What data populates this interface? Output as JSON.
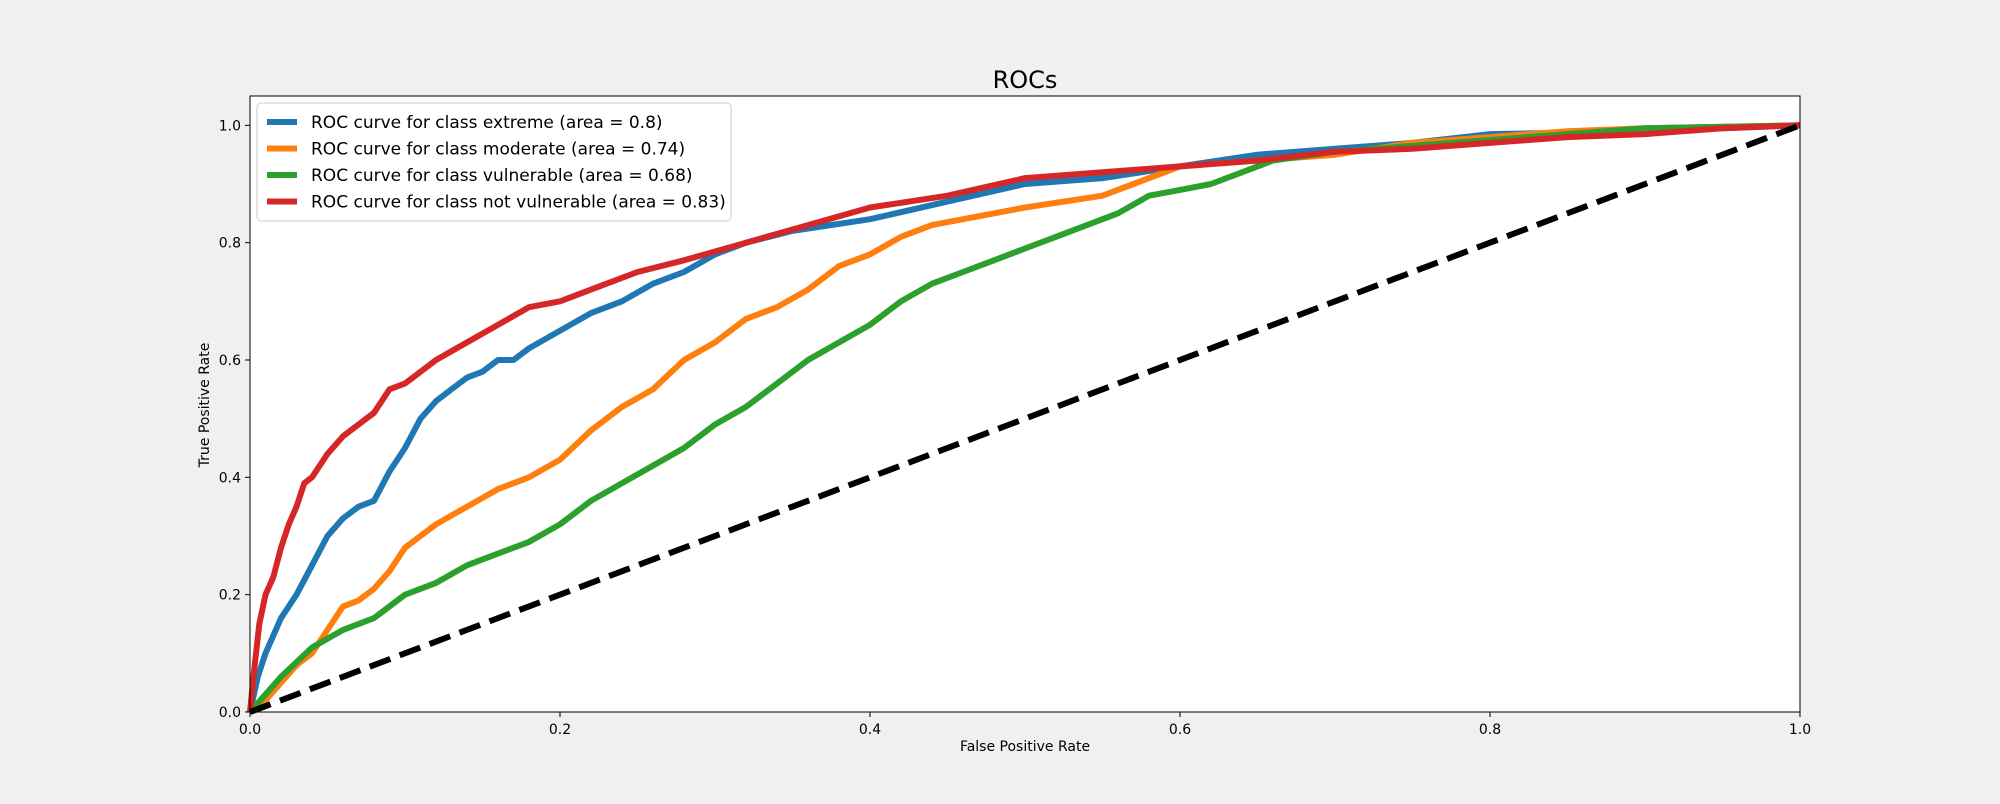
{
  "chart_data": {
    "type": "line",
    "title": "ROCs",
    "xlabel": "False Positive Rate",
    "ylabel": "True Positive Rate",
    "xlim": [
      0.0,
      1.0
    ],
    "ylim": [
      0.0,
      1.05
    ],
    "xticks": [
      "0.0",
      "0.2",
      "0.4",
      "0.6",
      "0.8",
      "1.0"
    ],
    "yticks": [
      "0.0",
      "0.2",
      "0.4",
      "0.6",
      "0.8",
      "1.0"
    ],
    "grid": false,
    "legend_position": "top-left",
    "series": [
      {
        "name": "ROC curve for class extreme (area = 0.8)",
        "color": "#1f77b4",
        "x": [
          0.0,
          0.005,
          0.01,
          0.015,
          0.02,
          0.03,
          0.04,
          0.05,
          0.06,
          0.07,
          0.08,
          0.09,
          0.1,
          0.11,
          0.12,
          0.13,
          0.14,
          0.15,
          0.16,
          0.17,
          0.18,
          0.2,
          0.22,
          0.24,
          0.26,
          0.28,
          0.3,
          0.32,
          0.35,
          0.4,
          0.45,
          0.5,
          0.55,
          0.6,
          0.65,
          0.7,
          0.75,
          0.8,
          0.9,
          1.0
        ],
        "y": [
          0.0,
          0.06,
          0.1,
          0.13,
          0.16,
          0.2,
          0.25,
          0.3,
          0.33,
          0.35,
          0.36,
          0.41,
          0.45,
          0.5,
          0.53,
          0.55,
          0.57,
          0.58,
          0.6,
          0.6,
          0.62,
          0.65,
          0.68,
          0.7,
          0.73,
          0.75,
          0.78,
          0.8,
          0.82,
          0.84,
          0.87,
          0.9,
          0.91,
          0.93,
          0.95,
          0.96,
          0.97,
          0.985,
          0.99,
          1.0
        ]
      },
      {
        "name": "ROC curve for class moderate (area = 0.74)",
        "color": "#ff7f0e",
        "x": [
          0.0,
          0.01,
          0.02,
          0.03,
          0.04,
          0.05,
          0.06,
          0.07,
          0.08,
          0.09,
          0.1,
          0.11,
          0.12,
          0.14,
          0.16,
          0.18,
          0.2,
          0.22,
          0.24,
          0.26,
          0.28,
          0.3,
          0.32,
          0.34,
          0.36,
          0.38,
          0.4,
          0.42,
          0.44,
          0.46,
          0.5,
          0.55,
          0.6,
          0.65,
          0.7,
          0.75,
          0.8,
          0.85,
          0.9,
          1.0
        ],
        "y": [
          0.0,
          0.02,
          0.05,
          0.08,
          0.1,
          0.14,
          0.18,
          0.19,
          0.21,
          0.24,
          0.28,
          0.3,
          0.32,
          0.35,
          0.38,
          0.4,
          0.43,
          0.48,
          0.52,
          0.55,
          0.6,
          0.63,
          0.67,
          0.69,
          0.72,
          0.76,
          0.78,
          0.81,
          0.83,
          0.84,
          0.86,
          0.88,
          0.93,
          0.94,
          0.95,
          0.97,
          0.98,
          0.99,
          0.995,
          1.0
        ]
      },
      {
        "name": "ROC curve for class vulnerable (area = 0.68)",
        "color": "#2ca02c",
        "x": [
          0.0,
          0.02,
          0.04,
          0.06,
          0.08,
          0.1,
          0.12,
          0.14,
          0.16,
          0.18,
          0.2,
          0.22,
          0.24,
          0.26,
          0.28,
          0.3,
          0.32,
          0.34,
          0.36,
          0.38,
          0.4,
          0.42,
          0.44,
          0.46,
          0.48,
          0.5,
          0.52,
          0.54,
          0.56,
          0.58,
          0.6,
          0.62,
          0.64,
          0.66,
          0.7,
          0.75,
          0.8,
          0.85,
          0.9,
          1.0
        ],
        "y": [
          0.0,
          0.06,
          0.11,
          0.14,
          0.16,
          0.2,
          0.22,
          0.25,
          0.27,
          0.29,
          0.32,
          0.36,
          0.39,
          0.42,
          0.45,
          0.49,
          0.52,
          0.56,
          0.6,
          0.63,
          0.66,
          0.7,
          0.73,
          0.75,
          0.77,
          0.79,
          0.81,
          0.83,
          0.85,
          0.88,
          0.89,
          0.9,
          0.92,
          0.94,
          0.955,
          0.965,
          0.975,
          0.985,
          0.995,
          1.0
        ]
      },
      {
        "name": "ROC curve for class not vulnerable (area = 0.83)",
        "color": "#d62728",
        "x": [
          0.0,
          0.003,
          0.006,
          0.01,
          0.015,
          0.02,
          0.025,
          0.03,
          0.035,
          0.04,
          0.05,
          0.06,
          0.07,
          0.08,
          0.09,
          0.1,
          0.12,
          0.14,
          0.16,
          0.18,
          0.2,
          0.22,
          0.25,
          0.28,
          0.32,
          0.36,
          0.4,
          0.45,
          0.5,
          0.55,
          0.6,
          0.65,
          0.7,
          0.75,
          0.8,
          0.85,
          0.9,
          0.95,
          1.0
        ],
        "y": [
          0.0,
          0.08,
          0.15,
          0.2,
          0.23,
          0.28,
          0.32,
          0.35,
          0.39,
          0.4,
          0.44,
          0.47,
          0.49,
          0.51,
          0.55,
          0.56,
          0.6,
          0.63,
          0.66,
          0.69,
          0.7,
          0.72,
          0.75,
          0.77,
          0.8,
          0.83,
          0.86,
          0.88,
          0.91,
          0.92,
          0.93,
          0.94,
          0.955,
          0.96,
          0.97,
          0.98,
          0.985,
          0.995,
          1.0
        ]
      }
    ],
    "reference_line": {
      "x": [
        0.0,
        1.0
      ],
      "y": [
        0.0,
        1.0
      ],
      "color": "#000000",
      "style": "dashed"
    }
  }
}
